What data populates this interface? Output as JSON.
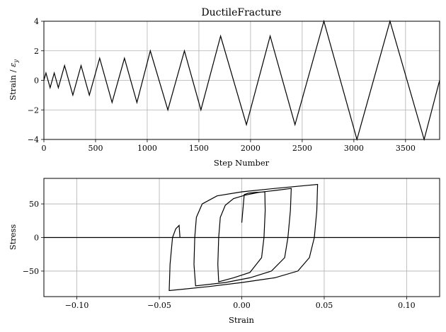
{
  "chart_data": [
    {
      "type": "line",
      "title": "DuctileFracture",
      "xlabel": "Step Number",
      "ylabel": "Strain / ε_y",
      "ylabel_main": "Strain / ",
      "ylabel_symbol": "ε",
      "ylabel_sub": "y",
      "xlim": [
        0,
        3830
      ],
      "ylim": [
        -4,
        4
      ],
      "xticks": [
        0,
        500,
        1000,
        1500,
        2000,
        2500,
        3000,
        3500
      ],
      "xtick_labels": [
        "0",
        "500",
        "1000",
        "1500",
        "2000",
        "2500",
        "3000",
        "3500"
      ],
      "yticks": [
        -4,
        -2,
        0,
        2,
        4
      ],
      "ytick_labels": [
        "−4",
        "−2",
        "0",
        "2",
        "4"
      ],
      "grid": true,
      "line_color": "#000000",
      "series": [
        {
          "x": [
            0,
            20,
            60,
            100,
            140,
            200,
            280,
            360,
            440,
            540,
            660,
            780,
            900,
            1030,
            1200,
            1360,
            1520,
            1710,
            1960,
            2190,
            2430,
            2710,
            3030,
            3350,
            3680,
            3830
          ],
          "y": [
            0,
            0.5,
            -0.5,
            0.5,
            -0.5,
            1,
            -1,
            1,
            -1,
            1.5,
            -1.5,
            1.5,
            -1.5,
            2,
            -2,
            2,
            -2,
            3,
            -3,
            3,
            -3,
            4,
            -4,
            4,
            -4,
            0
          ]
        }
      ]
    },
    {
      "type": "line",
      "title": "",
      "xlabel": "Strain",
      "ylabel": "Stress",
      "xlim": [
        -0.12,
        0.12
      ],
      "ylim": [
        -88,
        88
      ],
      "xticks": [
        -0.1,
        -0.05,
        0,
        0.05,
        0.1
      ],
      "xtick_labels": [
        "−0.10",
        "−0.05",
        "0.00",
        "0.05",
        "0.10"
      ],
      "yticks": [
        -50,
        0,
        50
      ],
      "ytick_labels": [
        "−50",
        "0",
        "50"
      ],
      "grid": true,
      "line_color": "#000000",
      "series": [
        {
          "x": [
            0,
            0.0015,
            0.004,
            0.008,
            0.014,
            0.0142,
            0.0135,
            0.012,
            0.005,
            -0.005,
            -0.014,
            -0.0145,
            -0.014,
            -0.013,
            -0.01,
            -0.005,
            0.002,
            0.01,
            0.02,
            0.03,
            0.0295,
            0.028,
            0.026,
            0.018,
            0.005,
            -0.01,
            -0.028,
            -0.029,
            -0.0285,
            -0.0275,
            -0.024,
            -0.015,
            0.0,
            0.02,
            0.046,
            0.0455,
            0.044,
            0.041,
            0.034,
            0.02,
            0.0,
            -0.02,
            -0.044,
            -0.0435,
            -0.042,
            -0.04,
            -0.038,
            -0.0375,
            -0.037,
            -0.12,
            0.12
          ],
          "y": [
            22,
            64,
            66,
            67,
            68,
            40,
            0,
            -30,
            -52,
            -60,
            -66,
            -40,
            0,
            30,
            48,
            58,
            63,
            67,
            70,
            73,
            40,
            0,
            -30,
            -50,
            -60,
            -67,
            -72,
            -40,
            0,
            30,
            50,
            62,
            68,
            73,
            79,
            40,
            0,
            -30,
            -50,
            -60,
            -67,
            -73,
            -79,
            -40,
            0,
            13,
            18,
            0,
            0,
            0,
            0
          ]
        }
      ]
    }
  ]
}
